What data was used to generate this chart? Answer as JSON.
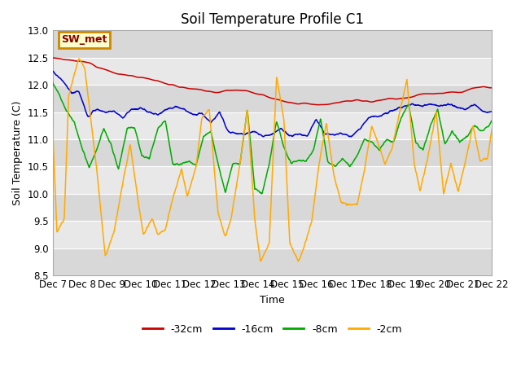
{
  "title": "Soil Temperature Profile C1",
  "xlabel": "Time",
  "ylabel": "Soil Temperature (C)",
  "ylim": [
    8.5,
    13.0
  ],
  "yticks": [
    8.5,
    9.0,
    9.5,
    10.0,
    10.5,
    11.0,
    11.5,
    12.0,
    12.5,
    13.0
  ],
  "x_labels": [
    "Dec 7",
    "Dec 8",
    "Dec 9",
    "Dec 10",
    "Dec 11",
    "Dec 12",
    "Dec 13",
    "Dec 14",
    "Dec 15",
    "Dec 16",
    "Dec 17",
    "Dec 18",
    "Dec 19",
    "Dec 20",
    "Dec 21",
    "Dec 22"
  ],
  "legend_labels": [
    "-32cm",
    "-16cm",
    "-8cm",
    "-2cm"
  ],
  "line_colors": [
    "#cc0000",
    "#0000cc",
    "#00aa00",
    "#ffaa00"
  ],
  "annotation_text": "SW_met",
  "annotation_bg": "#ffffcc",
  "annotation_border": "#cc8800",
  "annotation_text_color": "#880000",
  "background_color": "#ffffff",
  "plot_bg_color": "#e8e8e8",
  "grid_color": "#ffffff",
  "title_fontsize": 12
}
